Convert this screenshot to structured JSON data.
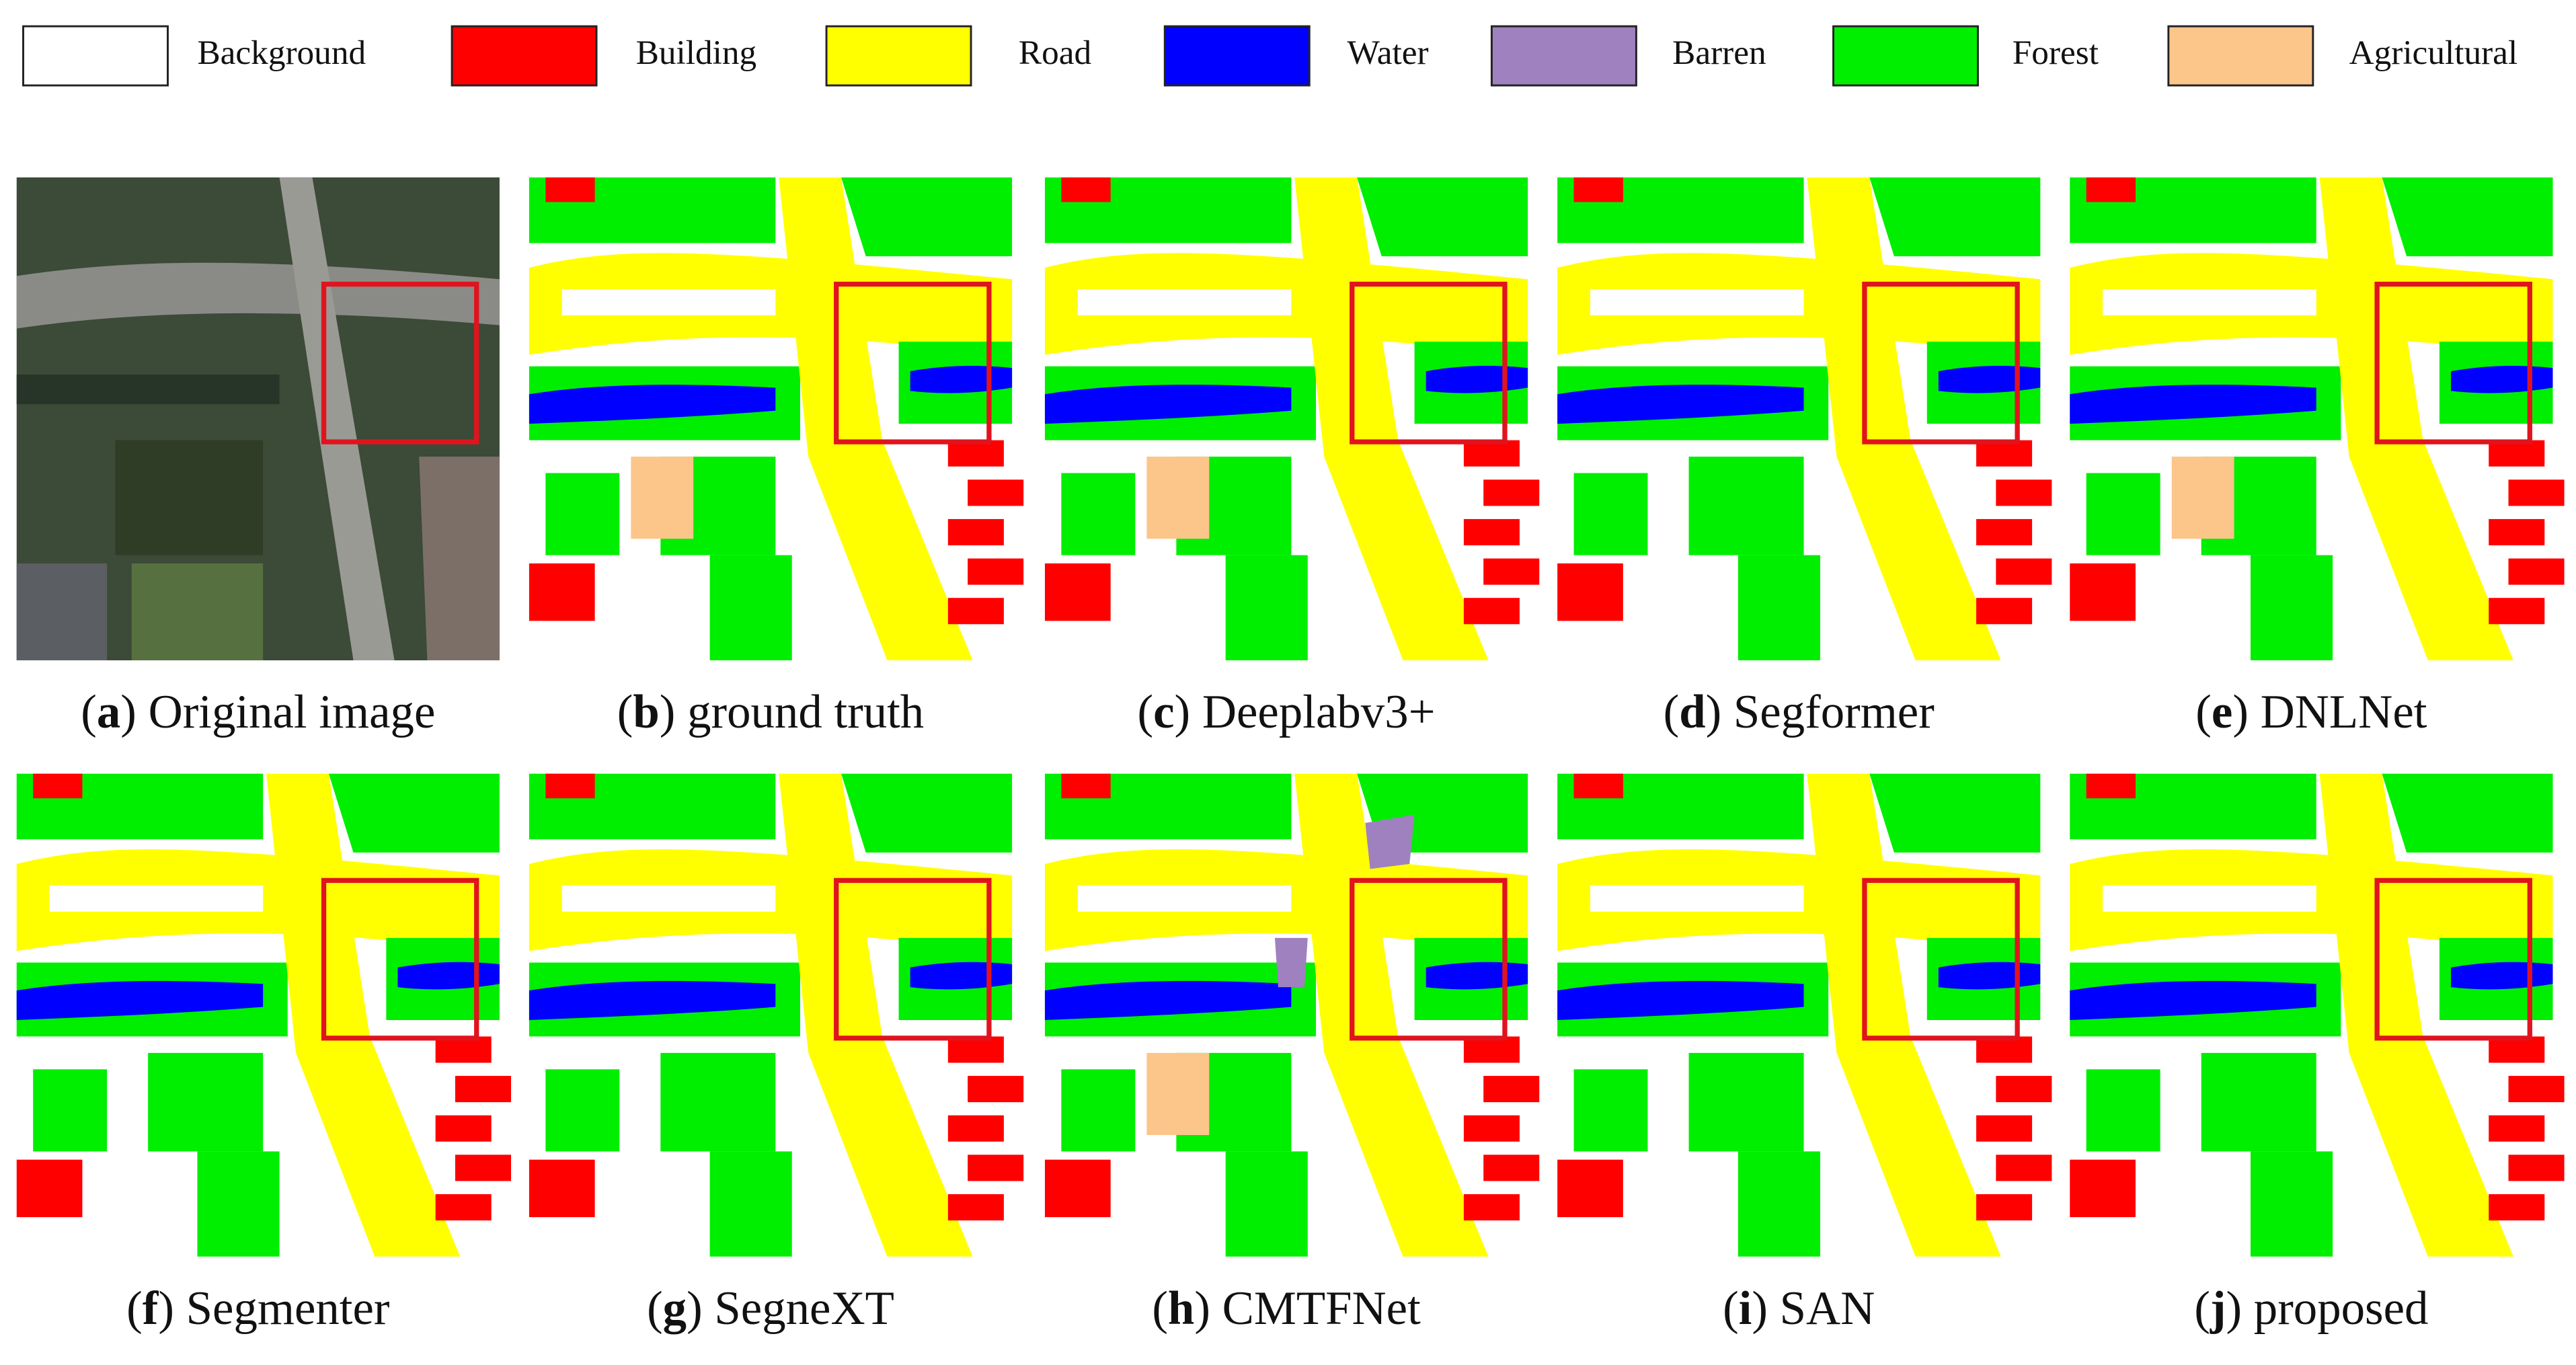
{
  "legend": [
    {
      "label": "Background",
      "color": "#ffffff"
    },
    {
      "label": "Building",
      "color": "#ff0000"
    },
    {
      "label": "Road",
      "color": "#ffff00"
    },
    {
      "label": "Water",
      "color": "#0000ff"
    },
    {
      "label": "Barren",
      "color": "#9f81bf"
    },
    {
      "label": "Forest",
      "color": "#00ee00"
    },
    {
      "label": "Agricultural",
      "color": "#fcc58a"
    }
  ],
  "panels": [
    {
      "caption": [
        "(",
        "a",
        ") Original image"
      ]
    },
    {
      "caption": [
        "(",
        "b",
        ") ground truth"
      ]
    },
    {
      "caption": [
        "(",
        "c",
        ") Deeplabv3+"
      ]
    },
    {
      "caption": [
        "(",
        "d",
        ") Segformer"
      ]
    },
    {
      "caption": [
        "(",
        "e",
        ") DNLNet"
      ]
    },
    {
      "caption": [
        "(",
        "f",
        ") Segmenter"
      ]
    },
    {
      "caption": [
        "(",
        "g",
        ") SegneXT"
      ]
    },
    {
      "caption": [
        "(",
        "h",
        ") CMTFNet"
      ]
    },
    {
      "caption": [
        "(",
        "i",
        ") SAN"
      ]
    },
    {
      "caption": [
        "(",
        "j",
        ") proposed"
      ]
    }
  ]
}
